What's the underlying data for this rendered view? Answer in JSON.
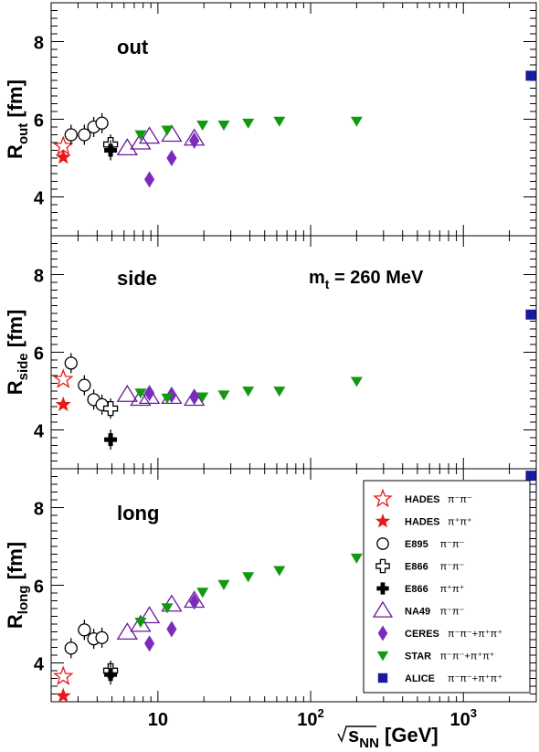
{
  "chart_data": [
    {
      "type": "scatter",
      "panel_label": "out",
      "ylabel_main": "R",
      "ylabel_sub": "out",
      "ylabel_unit": " [fm]",
      "yticks": [
        "4",
        "6",
        "8"
      ],
      "xlog": true,
      "xlim": [
        2.0,
        3000
      ],
      "ylim": [
        3.0,
        9.0
      ],
      "series": [
        {
          "name": "HADES π⁻π⁻",
          "points": [
            [
              2.4,
              5.3
            ]
          ]
        },
        {
          "name": "HADES π⁺π⁺",
          "points": [
            [
              2.4,
              5.02
            ]
          ]
        },
        {
          "name": "E895 π⁻π⁻",
          "points": [
            [
              2.7,
              5.6
            ],
            [
              3.3,
              5.6
            ],
            [
              3.8,
              5.8
            ],
            [
              4.3,
              5.9
            ]
          ]
        },
        {
          "name": "E866 π⁻π⁻",
          "points": [
            [
              4.9,
              5.35
            ]
          ]
        },
        {
          "name": "E866 π⁺π⁺",
          "points": [
            [
              4.9,
              5.2
            ]
          ]
        },
        {
          "name": "NA49 π⁻π⁻",
          "points": [
            [
              6.3,
              5.25
            ],
            [
              7.7,
              5.4
            ],
            [
              8.8,
              5.55
            ],
            [
              12.3,
              5.6
            ],
            [
              17.3,
              5.5
            ]
          ]
        },
        {
          "name": "CERES π⁻π⁻+π⁺π⁺",
          "points": [
            [
              8.8,
              4.45
            ],
            [
              12.3,
              5.0
            ],
            [
              17.3,
              5.45
            ]
          ]
        },
        {
          "name": "STAR π⁻π⁻+π⁺π⁺",
          "points": [
            [
              7.7,
              5.6
            ],
            [
              11.5,
              5.72
            ],
            [
              19.6,
              5.85
            ],
            [
              27,
              5.85
            ],
            [
              39,
              5.9
            ],
            [
              62.4,
              5.95
            ],
            [
              200,
              5.95
            ]
          ]
        },
        {
          "name": "ALICE π⁻π⁻+π⁺π⁺",
          "points": [
            [
              2760,
              7.12
            ]
          ]
        }
      ]
    },
    {
      "type": "scatter",
      "panel_label": "side",
      "annotation_main": "m",
      "annotation_sub": "t",
      "annotation_rest": " = 260 MeV",
      "ylabel_main": "R",
      "ylabel_sub": "side",
      "ylabel_unit": " [fm]",
      "yticks": [
        "4",
        "6",
        "8"
      ],
      "xlog": true,
      "xlim": [
        2.0,
        3000
      ],
      "ylim": [
        3.0,
        9.0
      ],
      "series": [
        {
          "name": "HADES π⁻π⁻",
          "points": [
            [
              2.4,
              5.3
            ]
          ]
        },
        {
          "name": "HADES π⁺π⁺",
          "points": [
            [
              2.4,
              4.65
            ]
          ]
        },
        {
          "name": "E895 π⁻π⁻",
          "points": [
            [
              2.7,
              5.72
            ],
            [
              3.3,
              5.15
            ],
            [
              3.8,
              4.78
            ],
            [
              4.3,
              4.65
            ]
          ]
        },
        {
          "name": "E866 π⁻π⁻",
          "points": [
            [
              4.9,
              4.55
            ]
          ]
        },
        {
          "name": "E866 π⁺π⁺",
          "points": [
            [
              4.9,
              3.75
            ]
          ]
        },
        {
          "name": "NA49 π⁻π⁻",
          "points": [
            [
              6.3,
              4.9
            ],
            [
              7.7,
              4.8
            ],
            [
              8.8,
              4.85
            ],
            [
              12.3,
              4.85
            ],
            [
              17.3,
              4.8
            ]
          ]
        },
        {
          "name": "CERES π⁻π⁻+π⁺π⁺",
          "points": [
            [
              8.8,
              4.95
            ],
            [
              12.3,
              4.9
            ],
            [
              17.3,
              4.85
            ]
          ]
        },
        {
          "name": "STAR π⁻π⁻+π⁺π⁺",
          "points": [
            [
              7.7,
              4.95
            ],
            [
              11.5,
              4.82
            ],
            [
              19.6,
              4.85
            ],
            [
              27,
              4.9
            ],
            [
              39,
              5.0
            ],
            [
              62.4,
              5.0
            ],
            [
              200,
              5.25
            ]
          ]
        },
        {
          "name": "ALICE π⁻π⁻+π⁺π⁺",
          "points": [
            [
              2760,
              6.97
            ]
          ]
        }
      ]
    },
    {
      "type": "scatter",
      "panel_label": "long",
      "ylabel_main": "R",
      "ylabel_sub": "long",
      "ylabel_unit": " [fm]",
      "yticks": [
        "4",
        "6",
        "8"
      ],
      "xlog": true,
      "xlim": [
        2.0,
        3000
      ],
      "ylim": [
        3.0,
        9.0
      ],
      "xlabel": "√s_NN [GeV]",
      "xlabel_root": "s",
      "xlabel_sub": "NN",
      "xlabel_unit": " [GeV]",
      "xticks": [
        "10",
        "10",
        "10"
      ],
      "xtick_exps": [
        "",
        "2",
        "3"
      ],
      "legend_position": "top-right",
      "series": [
        {
          "name": "HADES π⁻π⁻",
          "points": [
            [
              2.4,
              3.65
            ]
          ]
        },
        {
          "name": "HADES π⁺π⁺",
          "points": [
            [
              2.4,
              3.15
            ]
          ]
        },
        {
          "name": "E895 π⁻π⁻",
          "points": [
            [
              2.7,
              4.38
            ],
            [
              3.3,
              4.85
            ],
            [
              3.8,
              4.62
            ],
            [
              4.3,
              4.65
            ]
          ]
        },
        {
          "name": "E866 π⁻π⁻",
          "points": [
            [
              4.9,
              3.8
            ]
          ]
        },
        {
          "name": "E866 π⁺π⁺",
          "points": [
            [
              4.9,
              3.7
            ]
          ]
        },
        {
          "name": "NA49 π⁻π⁻",
          "points": [
            [
              6.3,
              4.78
            ],
            [
              7.7,
              4.98
            ],
            [
              8.8,
              5.2
            ],
            [
              12.3,
              5.5
            ],
            [
              17.3,
              5.6
            ]
          ]
        },
        {
          "name": "CERES π⁻π⁻+π⁺π⁺",
          "points": [
            [
              8.8,
              4.5
            ],
            [
              12.3,
              4.87
            ],
            [
              17.3,
              5.58
            ]
          ]
        },
        {
          "name": "STAR π⁻π⁻+π⁺π⁺",
          "points": [
            [
              7.7,
              5.05
            ],
            [
              11.5,
              5.42
            ],
            [
              19.6,
              5.82
            ],
            [
              27,
              6.02
            ],
            [
              39,
              6.22
            ],
            [
              62.4,
              6.38
            ],
            [
              200,
              6.7
            ]
          ]
        },
        {
          "name": "ALICE π⁻π⁻+π⁺π⁺",
          "points": [
            [
              2760,
              8.82
            ]
          ]
        }
      ]
    }
  ],
  "legend": [
    {
      "label": "HADES",
      "particles": "π⁻π⁻",
      "marker": "open-star",
      "color": "#e41a1c"
    },
    {
      "label": "HADES",
      "particles": "π⁺π⁺",
      "marker": "star",
      "color": "#e41a1c"
    },
    {
      "label": "E895",
      "particles": "π⁻π⁻",
      "marker": "open-circle",
      "color": "#000000"
    },
    {
      "label": "E866",
      "particles": "π⁻π⁻",
      "marker": "open-cross",
      "color": "#000000"
    },
    {
      "label": "E866",
      "particles": "π⁺π⁺",
      "marker": "cross",
      "color": "#000000"
    },
    {
      "label": "NA49",
      "particles": "π⁻π⁻",
      "marker": "open-triangle-up",
      "color": "#6a1b9a"
    },
    {
      "label": "CERES",
      "particles": "π⁻π⁻+π⁺π⁺",
      "marker": "diamond",
      "color": "#7b2cbf"
    },
    {
      "label": "STAR",
      "particles": "π⁻π⁻+π⁺π⁺",
      "marker": "triangle-down",
      "color": "#119911"
    },
    {
      "label": "ALICE",
      "particles": "π⁻π⁻+π⁺π⁺",
      "marker": "square",
      "color": "#1a1a9c"
    }
  ]
}
